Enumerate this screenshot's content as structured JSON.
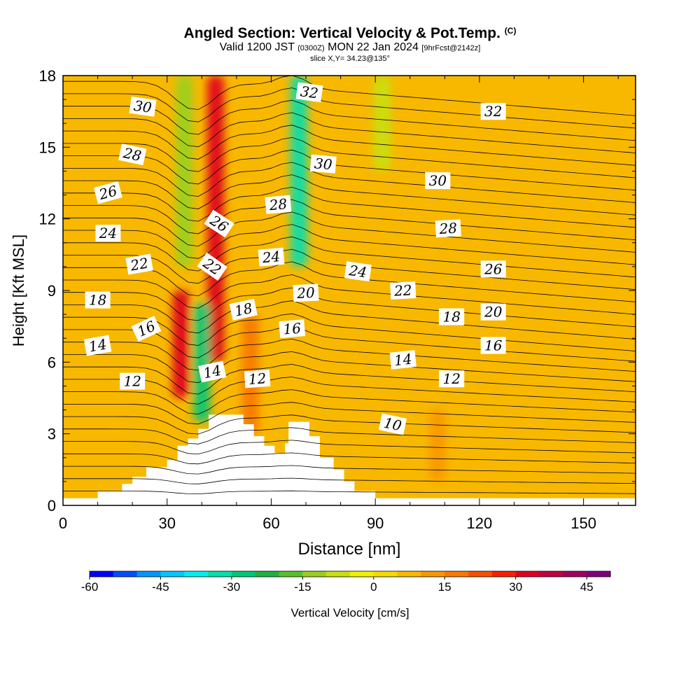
{
  "header": {
    "title": "Angled Section: Vertical Velocity & Pot.Temp.",
    "copyright": "(C)",
    "valid_main": "Valid 1200 JST",
    "valid_utc": "(0300Z)",
    "valid_date": "MON 22 Jan 2024",
    "forecast": "[9hrFcst@2142z]",
    "slice": "slice X,Y= 34.23@135°"
  },
  "chart_data": {
    "type": "heatmap",
    "title": "Angled Section: Vertical Velocity & Pot.Temp.",
    "xlabel": "Distance [nm]",
    "ylabel": "Height [Kft MSL]",
    "xlim": [
      0,
      165
    ],
    "ylim": [
      0,
      18
    ],
    "x_ticks": [
      0,
      30,
      60,
      90,
      120,
      150
    ],
    "y_ticks": [
      0,
      3,
      6,
      9,
      12,
      15,
      18
    ],
    "fill_field": "Vertical Velocity [cm/s]",
    "contour_field": "Potential Temperature (C)",
    "colorbar": {
      "label": "Vertical Velocity [cm/s]",
      "min": -60,
      "max": 50,
      "step": 5,
      "tick_labels": [
        "-60",
        "-45",
        "-30",
        "-15",
        "0",
        "15",
        "30",
        "45"
      ],
      "colors": [
        "#0000ff",
        "#0050ff",
        "#0096ff",
        "#00c8ff",
        "#00f0f0",
        "#00e0b0",
        "#00c878",
        "#20b040",
        "#58c030",
        "#98d020",
        "#c8e010",
        "#f0f000",
        "#f8d800",
        "#f8b800",
        "#f89800",
        "#f87800",
        "#f85000",
        "#f82000",
        "#e00020",
        "#c00040",
        "#a00060",
        "#800080"
      ]
    },
    "velocity_features": [
      {
        "x": 34,
        "y_range": [
          4.5,
          9
        ],
        "value": 30,
        "note": "ascent"
      },
      {
        "x": 44,
        "y_range": [
          6,
          18
        ],
        "value": 30,
        "note": "ascent"
      },
      {
        "x": 40,
        "y_range": [
          3.5,
          8.5
        ],
        "value": -30,
        "note": "descent"
      },
      {
        "x": 35,
        "y_range": [
          10,
          18
        ],
        "value": -12,
        "note": "descent"
      },
      {
        "x": 68,
        "y_range": [
          10,
          18
        ],
        "value": -35,
        "note": "descent"
      },
      {
        "x": 92,
        "y_range": [
          14,
          18
        ],
        "value": -8,
        "note": "descent"
      },
      {
        "x": 54,
        "y_range": [
          3,
          8
        ],
        "value": 15,
        "note": "ascent"
      },
      {
        "x": 108,
        "y_range": [
          1,
          4
        ],
        "value": 10,
        "note": "ascent"
      }
    ],
    "terrain_peaks": [
      {
        "x": 45,
        "height": 3.8
      },
      {
        "x": 67,
        "height": 3.5
      }
    ],
    "contour_labels": [
      {
        "value": "10",
        "x": 95,
        "y": 3.4,
        "angle": 12
      },
      {
        "value": "12",
        "x": 20,
        "y": 5.2,
        "angle": 0
      },
      {
        "value": "12",
        "x": 56,
        "y": 5.3,
        "angle": -4
      },
      {
        "value": "12",
        "x": 112,
        "y": 5.3,
        "angle": 0
      },
      {
        "value": "14",
        "x": 10,
        "y": 6.7,
        "angle": -10
      },
      {
        "value": "14",
        "x": 43,
        "y": 5.6,
        "angle": -12
      },
      {
        "value": "14",
        "x": 98,
        "y": 6.1,
        "angle": -6
      },
      {
        "value": "16",
        "x": 24,
        "y": 7.4,
        "angle": -25
      },
      {
        "value": "16",
        "x": 66,
        "y": 7.4,
        "angle": -5
      },
      {
        "value": "16",
        "x": 124,
        "y": 6.7,
        "angle": 0
      },
      {
        "value": "18",
        "x": 10,
        "y": 8.6,
        "angle": 0
      },
      {
        "value": "18",
        "x": 52,
        "y": 8.2,
        "angle": -12
      },
      {
        "value": "18",
        "x": 112,
        "y": 7.9,
        "angle": 0
      },
      {
        "value": "20",
        "x": 70,
        "y": 8.9,
        "angle": -3
      },
      {
        "value": "20",
        "x": 124,
        "y": 8.1,
        "angle": 0
      },
      {
        "value": "22",
        "x": 22,
        "y": 10.1,
        "angle": -10
      },
      {
        "value": "22",
        "x": 43,
        "y": 10.0,
        "angle": 35
      },
      {
        "value": "22",
        "x": 98,
        "y": 9.0,
        "angle": -3
      },
      {
        "value": "24",
        "x": 13,
        "y": 11.4,
        "angle": 0
      },
      {
        "value": "24",
        "x": 60,
        "y": 10.4,
        "angle": -5
      },
      {
        "value": "24",
        "x": 85,
        "y": 9.8,
        "angle": 8
      },
      {
        "value": "26",
        "x": 13,
        "y": 13.1,
        "angle": -15
      },
      {
        "value": "26",
        "x": 45,
        "y": 11.8,
        "angle": 33
      },
      {
        "value": "26",
        "x": 124,
        "y": 9.9,
        "angle": 0
      },
      {
        "value": "28",
        "x": 20,
        "y": 14.7,
        "angle": 12
      },
      {
        "value": "28",
        "x": 62,
        "y": 12.6,
        "angle": -5
      },
      {
        "value": "28",
        "x": 111,
        "y": 11.6,
        "angle": -3
      },
      {
        "value": "30",
        "x": 23,
        "y": 16.7,
        "angle": 8
      },
      {
        "value": "30",
        "x": 75,
        "y": 14.3,
        "angle": 5
      },
      {
        "value": "30",
        "x": 108,
        "y": 13.6,
        "angle": 0
      },
      {
        "value": "32",
        "x": 71,
        "y": 17.3,
        "angle": 8
      },
      {
        "value": "32",
        "x": 124,
        "y": 16.5,
        "angle": 0
      }
    ]
  }
}
